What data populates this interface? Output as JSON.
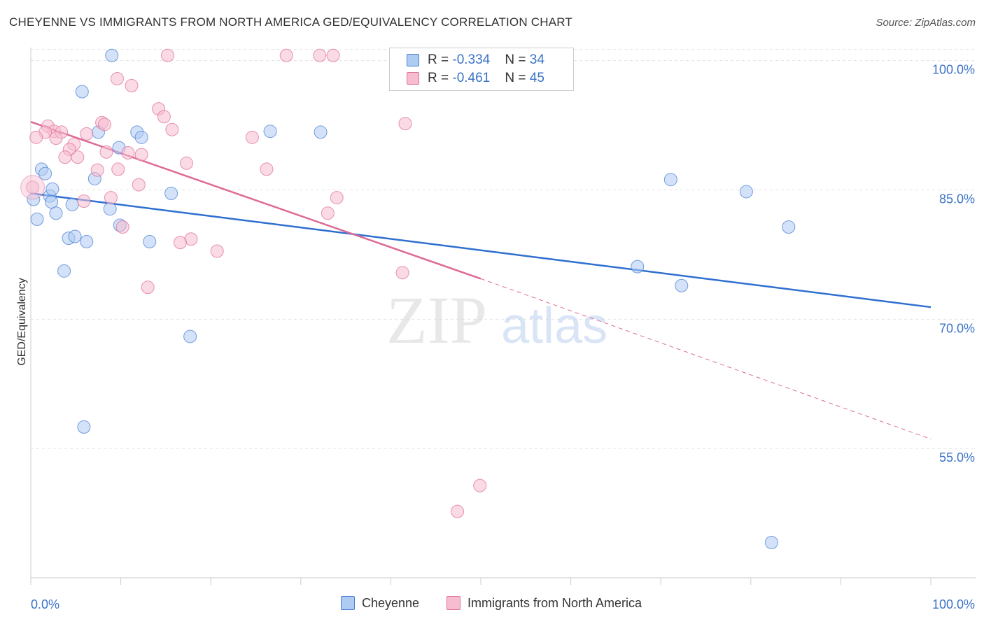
{
  "title": "CHEYENNE VS IMMIGRANTS FROM NORTH AMERICA GED/EQUIVALENCY CORRELATION CHART",
  "source": "Source: ZipAtlas.com",
  "watermark": {
    "zip": "ZIP",
    "atlas": "atlas"
  },
  "legend": {
    "rows": [
      {
        "r_label": "R = ",
        "r_value": "-0.334",
        "n_label": "N = ",
        "n_value": "34"
      },
      {
        "r_label": "R = ",
        "r_value": "-0.461",
        "n_label": "N = ",
        "n_value": "45"
      }
    ]
  },
  "chart_data": {
    "type": "scatter",
    "title": "CHEYENNE VS IMMIGRANTS FROM NORTH AMERICA GED/EQUIVALENCY CORRELATION CHART",
    "xlabel": "",
    "ylabel": "GED/Equivalency",
    "xlim": [
      0,
      100
    ],
    "ylim": [
      40,
      102
    ],
    "x_tick_labels": [
      "0.0%",
      "100.0%"
    ],
    "y_ticks": [
      55,
      70,
      85,
      100
    ],
    "y_tick_labels": [
      "55.0%",
      "70.0%",
      "85.0%",
      "100.0%"
    ],
    "series": [
      {
        "name": "Cheyenne",
        "color": "#4a7fd4",
        "fill": "#aecbf2",
        "trend": {
          "x": [
            0,
            100
          ],
          "y": [
            84.6,
            71.4
          ]
        },
        "points": [
          [
            9,
            100.6
          ],
          [
            0.3,
            83.9
          ],
          [
            1.2,
            87.4
          ],
          [
            1.6,
            86.9
          ],
          [
            2.1,
            84.3
          ],
          [
            2.4,
            85.1
          ],
          [
            2.3,
            83.6
          ],
          [
            0.7,
            81.6
          ],
          [
            2.8,
            82.3
          ],
          [
            4.6,
            83.3
          ],
          [
            5.7,
            96.4
          ],
          [
            7.5,
            91.7
          ],
          [
            7.1,
            86.3
          ],
          [
            9.8,
            89.9
          ],
          [
            8.8,
            82.8
          ],
          [
            9.9,
            80.9
          ],
          [
            11.8,
            91.7
          ],
          [
            12.3,
            91.1
          ],
          [
            15.6,
            84.6
          ],
          [
            13.2,
            79.0
          ],
          [
            4.2,
            79.4
          ],
          [
            4.9,
            79.6
          ],
          [
            6.2,
            79.0
          ],
          [
            3.7,
            75.6
          ],
          [
            17.7,
            68.0
          ],
          [
            5.9,
            57.5
          ],
          [
            26.6,
            91.8
          ],
          [
            32.2,
            91.7
          ],
          [
            71.1,
            86.2
          ],
          [
            79.5,
            84.8
          ],
          [
            84.2,
            80.7
          ],
          [
            67.4,
            76.1
          ],
          [
            72.3,
            73.9
          ],
          [
            82.3,
            44.1
          ]
        ]
      },
      {
        "name": "Immigrants from North America",
        "color": "#e0709a",
        "fill": "#f6bcd0",
        "trend": {
          "x": [
            0,
            50
          ],
          "y": [
            92.9,
            74.7
          ]
        },
        "trend_dashed": {
          "x": [
            50,
            100
          ],
          "y": [
            74.7,
            56.1
          ]
        },
        "points": [
          [
            15.2,
            100.6
          ],
          [
            28.4,
            100.6
          ],
          [
            32.1,
            100.6
          ],
          [
            33.6,
            100.6
          ],
          [
            9.6,
            97.9
          ],
          [
            11.2,
            97.1
          ],
          [
            14.2,
            94.4
          ],
          [
            14.8,
            93.5
          ],
          [
            7.9,
            92.8
          ],
          [
            8.2,
            92.6
          ],
          [
            1.9,
            92.4
          ],
          [
            2.6,
            91.8
          ],
          [
            1.6,
            91.7
          ],
          [
            3.4,
            91.7
          ],
          [
            0.6,
            91.1
          ],
          [
            2.8,
            91.0
          ],
          [
            6.2,
            91.5
          ],
          [
            15.7,
            92.0
          ],
          [
            24.6,
            91.1
          ],
          [
            4.8,
            90.3
          ],
          [
            4.3,
            89.7
          ],
          [
            8.4,
            89.4
          ],
          [
            10.8,
            89.3
          ],
          [
            12.3,
            89.1
          ],
          [
            3.8,
            88.8
          ],
          [
            5.2,
            88.8
          ],
          [
            17.3,
            88.1
          ],
          [
            7.4,
            87.3
          ],
          [
            9.7,
            87.4
          ],
          [
            26.2,
            87.4
          ],
          [
            12.0,
            85.6
          ],
          [
            0.2,
            85.3
          ],
          [
            8.9,
            84.1
          ],
          [
            5.9,
            83.7
          ],
          [
            34.0,
            84.1
          ],
          [
            33.0,
            82.3
          ],
          [
            10.2,
            80.7
          ],
          [
            17.8,
            79.3
          ],
          [
            16.6,
            78.9
          ],
          [
            20.7,
            77.9
          ],
          [
            41.6,
            92.7
          ],
          [
            41.3,
            75.4
          ],
          [
            13.0,
            73.7
          ],
          [
            49.9,
            50.7
          ],
          [
            47.4,
            47.7
          ]
        ]
      }
    ]
  }
}
